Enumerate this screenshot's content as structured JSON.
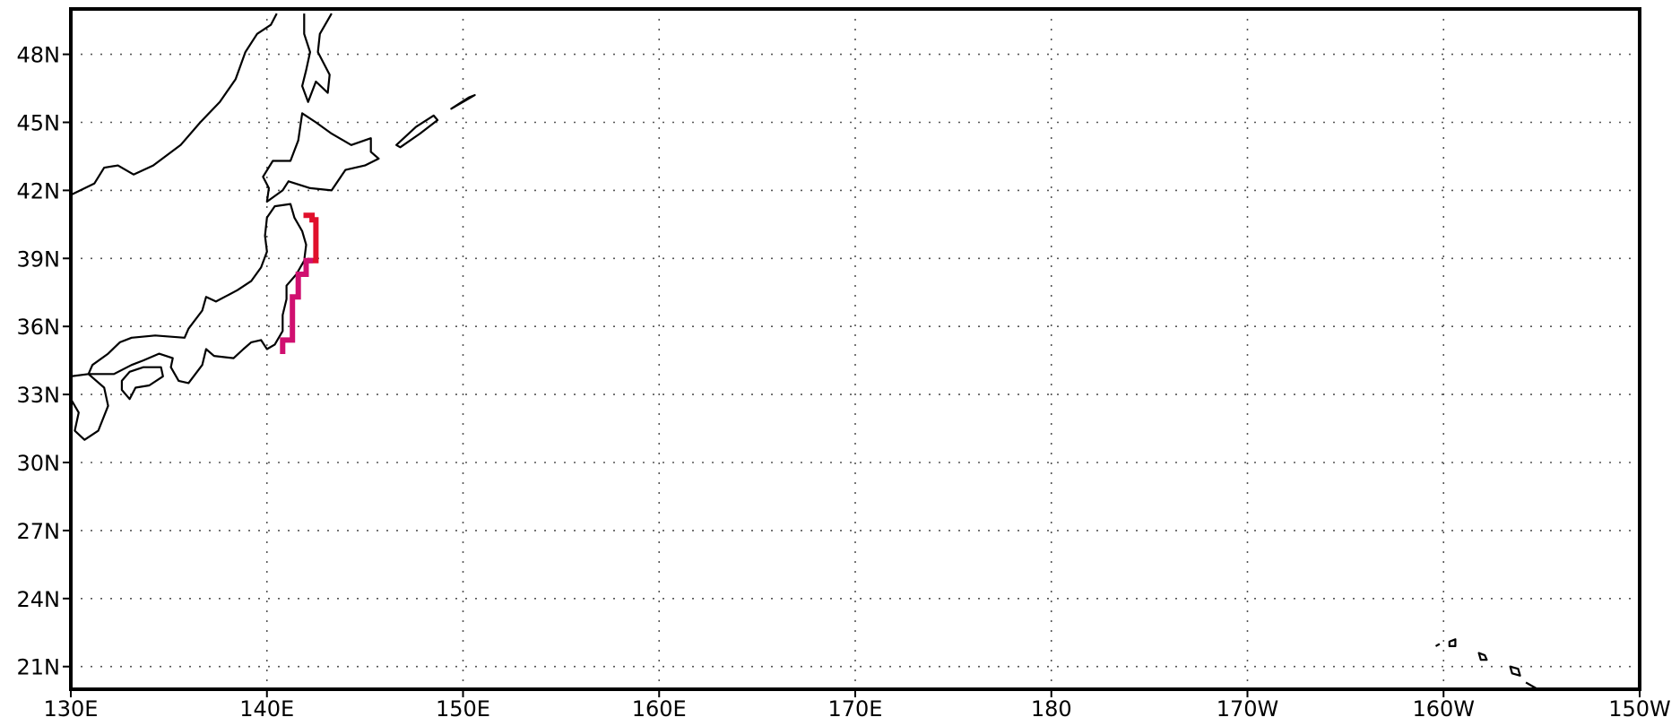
{
  "map": {
    "projection": "latitude-longitude",
    "lon_range": [
      130,
      210
    ],
    "lat_range": [
      20,
      50
    ],
    "grid": "dotted",
    "lon_ticks": [
      {
        "value": 130,
        "label": "130E"
      },
      {
        "value": 140,
        "label": "140E"
      },
      {
        "value": 150,
        "label": "150E"
      },
      {
        "value": 160,
        "label": "160E"
      },
      {
        "value": 170,
        "label": "170E"
      },
      {
        "value": 180,
        "label": "180"
      },
      {
        "value": 190,
        "label": "170W"
      },
      {
        "value": 200,
        "label": "160W"
      },
      {
        "value": 210,
        "label": "150W"
      }
    ],
    "lat_ticks": [
      {
        "value": 48,
        "label": "48N"
      },
      {
        "value": 45,
        "label": "45N"
      },
      {
        "value": 42,
        "label": "42N"
      },
      {
        "value": 39,
        "label": "39N"
      },
      {
        "value": 36,
        "label": "36N"
      },
      {
        "value": 33,
        "label": "33N"
      },
      {
        "value": 30,
        "label": "30N"
      },
      {
        "value": 27,
        "label": "27N"
      },
      {
        "value": 24,
        "label": "24N"
      },
      {
        "value": 21,
        "label": "21N"
      }
    ],
    "coastline_color": "#000000",
    "coastlines": [
      {
        "name": "asia-mainland-coast",
        "closed": false,
        "points": [
          [
            130,
            41.8
          ],
          [
            131.2,
            42.3
          ],
          [
            131.7,
            43.0
          ],
          [
            132.4,
            43.1
          ],
          [
            133.2,
            42.7
          ],
          [
            134.2,
            43.1
          ],
          [
            135.6,
            44.0
          ],
          [
            136.6,
            45.0
          ],
          [
            137.6,
            45.9
          ],
          [
            138.4,
            46.9
          ],
          [
            138.9,
            48.1
          ],
          [
            139.5,
            48.9
          ],
          [
            140.2,
            49.3
          ],
          [
            140.5,
            49.8
          ]
        ]
      },
      {
        "name": "sakhalin-coast",
        "closed": false,
        "points": [
          [
            141.9,
            49.8
          ],
          [
            141.9,
            48.9
          ],
          [
            142.2,
            48.1
          ],
          [
            142.0,
            47.3
          ],
          [
            141.8,
            46.6
          ],
          [
            142.1,
            45.9
          ],
          [
            142.5,
            46.8
          ],
          [
            143.1,
            46.3
          ],
          [
            143.2,
            47.1
          ],
          [
            142.6,
            48.1
          ],
          [
            142.7,
            48.9
          ],
          [
            143.3,
            49.8
          ]
        ]
      },
      {
        "name": "hokkaido-coast",
        "closed": true,
        "points": [
          [
            141.8,
            45.4
          ],
          [
            142.5,
            45.0
          ],
          [
            143.3,
            44.5
          ],
          [
            144.3,
            44.0
          ],
          [
            145.3,
            44.3
          ],
          [
            145.3,
            43.7
          ],
          [
            145.7,
            43.4
          ],
          [
            145.0,
            43.1
          ],
          [
            144.0,
            42.9
          ],
          [
            143.3,
            42.0
          ],
          [
            142.2,
            42.1
          ],
          [
            141.1,
            42.4
          ],
          [
            140.8,
            42.0
          ],
          [
            140.0,
            41.5
          ],
          [
            140.1,
            42.1
          ],
          [
            139.8,
            42.6
          ],
          [
            140.3,
            43.3
          ],
          [
            141.2,
            43.3
          ],
          [
            141.6,
            44.2
          ]
        ]
      },
      {
        "name": "honshu-coast",
        "closed": true,
        "points": [
          [
            141.2,
            41.4
          ],
          [
            140.4,
            41.3
          ],
          [
            140.0,
            40.8
          ],
          [
            139.9,
            40.0
          ],
          [
            140.0,
            39.3
          ],
          [
            139.7,
            38.6
          ],
          [
            139.2,
            38.0
          ],
          [
            138.5,
            37.6
          ],
          [
            137.4,
            37.1
          ],
          [
            136.9,
            37.3
          ],
          [
            136.7,
            36.7
          ],
          [
            136.0,
            35.9
          ],
          [
            135.8,
            35.5
          ],
          [
            134.3,
            35.6
          ],
          [
            133.1,
            35.5
          ],
          [
            132.5,
            35.3
          ],
          [
            131.9,
            34.8
          ],
          [
            131.1,
            34.3
          ],
          [
            130.9,
            33.9
          ],
          [
            131.3,
            33.9
          ],
          [
            132.2,
            33.9
          ],
          [
            133.1,
            34.3
          ],
          [
            133.7,
            34.5
          ],
          [
            134.5,
            34.8
          ],
          [
            135.2,
            34.6
          ],
          [
            135.1,
            34.2
          ],
          [
            135.5,
            33.6
          ],
          [
            136.0,
            33.5
          ],
          [
            136.7,
            34.3
          ],
          [
            136.9,
            35.0
          ],
          [
            137.3,
            34.7
          ],
          [
            138.3,
            34.6
          ],
          [
            138.8,
            35.0
          ],
          [
            139.2,
            35.3
          ],
          [
            139.7,
            35.4
          ],
          [
            140.0,
            35.0
          ],
          [
            140.4,
            35.2
          ],
          [
            140.8,
            35.8
          ],
          [
            140.8,
            36.5
          ],
          [
            141.0,
            37.2
          ],
          [
            141.0,
            37.8
          ],
          [
            141.5,
            38.3
          ],
          [
            141.9,
            38.9
          ],
          [
            142.0,
            39.6
          ],
          [
            141.8,
            40.2
          ],
          [
            141.4,
            40.8
          ]
        ]
      },
      {
        "name": "kyushu-coast",
        "closed": true,
        "points": [
          [
            130.0,
            33.8
          ],
          [
            130.9,
            33.9
          ],
          [
            131.7,
            33.3
          ],
          [
            131.9,
            32.5
          ],
          [
            131.4,
            31.4
          ],
          [
            130.7,
            31.0
          ],
          [
            130.2,
            31.4
          ],
          [
            130.4,
            32.2
          ],
          [
            130.0,
            32.8
          ]
        ]
      },
      {
        "name": "shikoku-coast",
        "closed": true,
        "points": [
          [
            132.6,
            33.2
          ],
          [
            133.0,
            32.8
          ],
          [
            133.3,
            33.3
          ],
          [
            134.0,
            33.4
          ],
          [
            134.7,
            33.8
          ],
          [
            134.6,
            34.2
          ],
          [
            133.7,
            34.2
          ],
          [
            133.0,
            34.0
          ],
          [
            132.6,
            33.6
          ]
        ]
      },
      {
        "name": "kuril-island-1",
        "closed": true,
        "points": [
          [
            146.8,
            43.9
          ],
          [
            147.8,
            44.5
          ],
          [
            148.7,
            45.1
          ],
          [
            148.5,
            45.3
          ],
          [
            147.6,
            44.8
          ],
          [
            146.6,
            44.0
          ]
        ]
      },
      {
        "name": "kuril-island-2",
        "closed": true,
        "points": [
          [
            149.4,
            45.6
          ],
          [
            150.3,
            46.1
          ],
          [
            150.6,
            46.2
          ],
          [
            150.2,
            46.0
          ]
        ]
      },
      {
        "name": "hawaii-kauai",
        "closed": true,
        "points": [
          [
            200.3,
            22.1
          ],
          [
            200.6,
            22.2
          ],
          [
            200.6,
            21.9
          ],
          [
            200.3,
            21.9
          ]
        ]
      },
      {
        "name": "hawaii-oahu",
        "closed": true,
        "points": [
          [
            201.8,
            21.6
          ],
          [
            202.1,
            21.5
          ],
          [
            202.2,
            21.3
          ],
          [
            201.9,
            21.3
          ]
        ]
      },
      {
        "name": "hawaii-maui",
        "closed": true,
        "points": [
          [
            203.4,
            21.0
          ],
          [
            203.8,
            20.9
          ],
          [
            203.9,
            20.6
          ],
          [
            203.5,
            20.7
          ]
        ]
      },
      {
        "name": "hawaii-niihau",
        "closed": false,
        "points": [
          [
            199.6,
            21.9
          ],
          [
            199.8,
            22.0
          ]
        ]
      },
      {
        "name": "hawaii-big-island",
        "closed": false,
        "points": [
          [
            204.2,
            20.3
          ],
          [
            204.8,
            20.0
          ]
        ]
      }
    ],
    "overlays": [
      {
        "name": "tsunami-trace-north",
        "color": "#e0102b",
        "points": [
          [
            142.0,
            40.9
          ],
          [
            142.3,
            40.9
          ],
          [
            142.3,
            40.7
          ],
          [
            142.5,
            40.7
          ],
          [
            142.5,
            38.9
          ],
          [
            142.2,
            38.9
          ]
        ]
      },
      {
        "name": "tsunami-trace-south",
        "color": "#d01070",
        "points": [
          [
            142.2,
            38.9
          ],
          [
            142.0,
            38.9
          ],
          [
            142.0,
            38.3
          ],
          [
            141.6,
            38.3
          ],
          [
            141.6,
            37.3
          ],
          [
            141.3,
            37.3
          ],
          [
            141.3,
            35.4
          ],
          [
            140.8,
            35.4
          ],
          [
            140.8,
            34.9
          ]
        ]
      }
    ]
  }
}
